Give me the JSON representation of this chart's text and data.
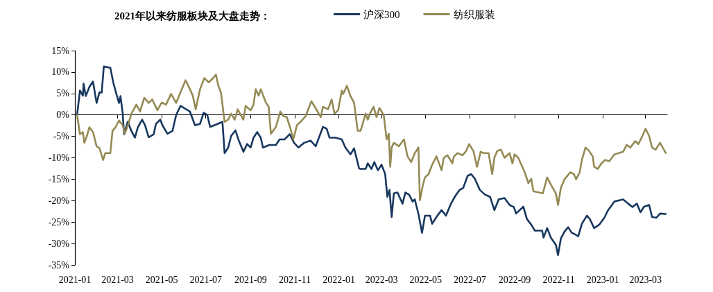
{
  "chart_data": {
    "type": "line",
    "title": "2021年以来纺服板块及大盘走势：",
    "xlim": [
      "2021-01-01",
      "2023-03-31"
    ],
    "xticks": [
      "2021-01",
      "2021-03",
      "2021-05",
      "2021-07",
      "2021-09",
      "2021-11",
      "2022-01",
      "2022-03",
      "2022-05",
      "2022-07",
      "2022-09",
      "2022-11",
      "2023-01",
      "2023-03"
    ],
    "ylim": [
      -35,
      15
    ],
    "yticks": [
      {
        "value": 15,
        "label": "15%"
      },
      {
        "value": 10,
        "label": "10%"
      },
      {
        "value": 5,
        "label": "5%"
      },
      {
        "value": 0,
        "label": "0%"
      },
      {
        "value": -5,
        "label": "-5%"
      },
      {
        "value": -10,
        "label": "-10%"
      },
      {
        "value": -15,
        "label": "-15%"
      },
      {
        "value": -20,
        "label": "-20%"
      },
      {
        "value": -25,
        "label": "-25%"
      },
      {
        "value": -30,
        "label": "-30%"
      },
      {
        "value": -35,
        "label": "-35%"
      }
    ],
    "legend": "top",
    "marker": "none",
    "line_style": "solid",
    "series": [
      {
        "name": "沪深300",
        "color": "#17375e",
        "x": [
          "2021-01-04",
          "2021-01-08",
          "2021-01-12",
          "2021-01-13",
          "2021-01-16",
          "2021-01-21",
          "2021-01-26",
          "2021-01-31",
          "2021-02-04",
          "2021-02-07",
          "2021-02-10",
          "2021-02-19",
          "2021-02-23",
          "2021-02-28",
          "2021-03-03",
          "2021-03-05",
          "2021-03-08",
          "2021-03-10",
          "2021-03-15",
          "2021-03-20",
          "2021-03-25",
          "2021-03-29",
          "2021-04-04",
          "2021-04-08",
          "2021-04-13",
          "2021-04-20",
          "2021-04-23",
          "2021-04-29",
          "2021-05-02",
          "2021-05-09",
          "2021-05-16",
          "2021-05-21",
          "2021-05-27",
          "2021-06-04",
          "2021-06-09",
          "2021-06-16",
          "2021-06-23",
          "2021-06-28",
          "2021-07-03",
          "2021-07-07",
          "2021-07-13",
          "2021-07-20",
          "2021-07-24",
          "2021-07-27",
          "2021-08-01",
          "2021-08-05",
          "2021-08-11",
          "2021-08-15",
          "2021-08-22",
          "2021-08-27",
          "2021-09-01",
          "2021-09-05",
          "2021-09-10",
          "2021-09-15",
          "2021-09-18",
          "2021-09-27",
          "2021-10-06",
          "2021-10-11",
          "2021-10-18",
          "2021-10-25",
          "2021-10-31",
          "2021-11-06",
          "2021-11-14",
          "2021-11-23",
          "2021-11-30",
          "2021-12-10",
          "2021-12-15",
          "2021-12-19",
          "2021-12-27",
          "2022-01-05",
          "2022-01-10",
          "2022-01-17",
          "2022-01-22",
          "2022-01-29",
          "2022-01-31",
          "2022-02-07",
          "2022-02-10",
          "2022-02-15",
          "2022-02-19",
          "2022-02-24",
          "2022-03-01",
          "2022-03-06",
          "2022-03-09",
          "2022-03-12",
          "2022-03-15",
          "2022-03-18",
          "2022-03-23",
          "2022-03-30",
          "2022-04-03",
          "2022-04-08",
          "2022-04-13",
          "2022-04-16",
          "2022-04-21",
          "2022-04-26",
          "2022-04-30",
          "2022-05-07",
          "2022-05-10",
          "2022-05-16",
          "2022-05-23",
          "2022-05-29",
          "2022-06-05",
          "2022-06-11",
          "2022-06-17",
          "2022-06-22",
          "2022-06-28",
          "2022-07-03",
          "2022-07-08",
          "2022-07-15",
          "2022-07-22",
          "2022-07-29",
          "2022-08-04",
          "2022-08-10",
          "2022-08-18",
          "2022-08-25",
          "2022-08-31",
          "2022-09-03",
          "2022-09-13",
          "2022-09-18",
          "2022-09-24",
          "2022-09-29",
          "2022-10-09",
          "2022-10-11",
          "2022-10-16",
          "2022-10-21",
          "2022-10-28",
          "2022-10-31",
          "2022-11-04",
          "2022-11-09",
          "2022-11-14",
          "2022-11-19",
          "2022-11-23",
          "2022-11-28",
          "2022-12-03",
          "2022-12-10",
          "2022-12-14",
          "2022-12-20",
          "2022-12-27",
          "2023-01-03",
          "2023-01-08",
          "2023-01-17",
          "2023-01-29",
          "2023-02-05",
          "2023-02-11",
          "2023-02-17",
          "2023-02-22",
          "2023-02-27",
          "2023-03-06",
          "2023-03-10",
          "2023-03-16",
          "2023-03-21",
          "2023-03-29"
        ],
        "values": [
          0,
          5.7,
          4.5,
          7.3,
          4.4,
          6.5,
          7.8,
          2.8,
          5.3,
          5.2,
          11.3,
          11,
          7.6,
          4.5,
          2.8,
          4.4,
          0.5,
          -4.5,
          -1.6,
          -3.7,
          -5.3,
          -2.9,
          -1.1,
          -2.4,
          -5.2,
          -4.5,
          -2.1,
          -1.1,
          -2.4,
          -4.4,
          -3.7,
          0,
          2.1,
          1.3,
          0.8,
          -2.4,
          -2.1,
          0.5,
          0,
          -2.8,
          -2.4,
          -1.9,
          -1.6,
          -8.9,
          -7.6,
          -4.9,
          -3.6,
          -5.7,
          -8.6,
          -6.8,
          -7.6,
          -5.3,
          -4,
          -5.3,
          -7.6,
          -7,
          -7,
          -5.7,
          -5.7,
          -4.5,
          -6.5,
          -7.6,
          -6.5,
          -6,
          -7.3,
          -2.8,
          -3.2,
          -5.3,
          -5.3,
          -5.7,
          -7.6,
          -9.2,
          -7.8,
          -12.5,
          -12.6,
          -12.6,
          -11.3,
          -12.6,
          -11,
          -12.9,
          -11.6,
          -13.8,
          -19.1,
          -17.5,
          -23.8,
          -18.3,
          -18.1,
          -20.7,
          -18.1,
          -18.6,
          -20.2,
          -19.7,
          -23.1,
          -27.5,
          -23.5,
          -23.5,
          -25.4,
          -23.8,
          -22.2,
          -23.5,
          -20.7,
          -18.9,
          -17.5,
          -17,
          -14.2,
          -13.8,
          -14.9,
          -17.5,
          -18.6,
          -19.1,
          -22.2,
          -19.7,
          -19.4,
          -21,
          -21.5,
          -23,
          -21.4,
          -24.3,
          -25.6,
          -27,
          -27,
          -28.6,
          -26.4,
          -28.6,
          -30.3,
          -32.7,
          -28.8,
          -27.2,
          -26.2,
          -27.5,
          -27.8,
          -28.3,
          -25.4,
          -23.5,
          -24.3,
          -26.4,
          -25.6,
          -24,
          -22.3,
          -20.2,
          -19.7,
          -20.7,
          -21.5,
          -20.7,
          -22.7,
          -21.4,
          -21,
          -23.8,
          -24,
          -23,
          -23.1
        ]
      },
      {
        "name": "纺织服装",
        "color": "#948a54",
        "x": [
          "2021-01-04",
          "2021-01-08",
          "2021-01-12",
          "2021-01-14",
          "2021-01-17",
          "2021-01-21",
          "2021-01-26",
          "2021-01-31",
          "2021-02-04",
          "2021-02-09",
          "2021-02-12",
          "2021-02-19",
          "2021-02-22",
          "2021-02-26",
          "2021-03-03",
          "2021-03-08",
          "2021-03-11",
          "2021-03-16",
          "2021-03-20",
          "2021-03-27",
          "2021-04-01",
          "2021-04-07",
          "2021-04-13",
          "2021-04-18",
          "2021-04-25",
          "2021-05-01",
          "2021-05-07",
          "2021-05-14",
          "2021-05-21",
          "2021-05-28",
          "2021-06-03",
          "2021-06-09",
          "2021-06-13",
          "2021-06-17",
          "2021-06-23",
          "2021-06-29",
          "2021-07-05",
          "2021-07-10",
          "2021-07-15",
          "2021-07-18",
          "2021-07-22",
          "2021-07-27",
          "2021-08-01",
          "2021-08-05",
          "2021-08-10",
          "2021-08-14",
          "2021-08-22",
          "2021-08-25",
          "2021-09-01",
          "2021-09-05",
          "2021-09-08",
          "2021-09-12",
          "2021-09-15",
          "2021-09-22",
          "2021-09-26",
          "2021-09-29",
          "2021-10-06",
          "2021-10-12",
          "2021-10-16",
          "2021-10-21",
          "2021-10-26",
          "2021-10-30",
          "2021-11-04",
          "2021-11-09",
          "2021-11-16",
          "2021-11-24",
          "2021-11-28",
          "2021-12-07",
          "2021-12-10",
          "2021-12-17",
          "2021-12-22",
          "2021-12-26",
          "2021-12-31",
          "2022-01-05",
          "2022-01-07",
          "2022-01-12",
          "2022-01-17",
          "2022-01-22",
          "2022-01-27",
          "2022-01-31",
          "2022-02-07",
          "2022-02-10",
          "2022-02-13",
          "2022-02-18",
          "2022-02-22",
          "2022-02-26",
          "2022-03-04",
          "2022-03-08",
          "2022-03-11",
          "2022-03-13",
          "2022-03-15",
          "2022-03-18",
          "2022-03-25",
          "2022-04-01",
          "2022-04-06",
          "2022-04-11",
          "2022-04-16",
          "2022-04-21",
          "2022-04-23",
          "2022-04-27",
          "2022-04-30",
          "2022-05-05",
          "2022-05-10",
          "2022-05-16",
          "2022-05-23",
          "2022-05-26",
          "2022-05-31",
          "2022-06-07",
          "2022-06-09",
          "2022-06-14",
          "2022-06-21",
          "2022-06-26",
          "2022-06-30",
          "2022-07-06",
          "2022-07-11",
          "2022-07-16",
          "2022-07-20",
          "2022-07-27",
          "2022-08-01",
          "2022-08-04",
          "2022-08-08",
          "2022-08-13",
          "2022-08-18",
          "2022-08-25",
          "2022-08-29",
          "2022-09-01",
          "2022-09-06",
          "2022-09-15",
          "2022-09-20",
          "2022-09-24",
          "2022-09-27",
          "2022-10-10",
          "2022-10-16",
          "2022-10-21",
          "2022-10-28",
          "2022-10-31",
          "2022-11-04",
          "2022-11-09",
          "2022-11-17",
          "2022-11-22",
          "2022-11-25",
          "2022-11-30",
          "2022-12-03",
          "2022-12-08",
          "2022-12-13",
          "2022-12-18",
          "2022-12-20",
          "2022-12-25",
          "2022-12-30",
          "2023-01-04",
          "2023-01-10",
          "2023-01-17",
          "2023-01-23",
          "2023-01-29",
          "2023-02-03",
          "2023-02-08",
          "2023-02-15",
          "2023-02-19",
          "2023-02-24",
          "2023-03-01",
          "2023-03-06",
          "2023-03-10",
          "2023-03-15",
          "2023-03-21",
          "2023-03-29"
        ],
        "values": [
          0,
          -4.5,
          -4,
          -6.5,
          -5.2,
          -2.9,
          -4,
          -7.3,
          -7.8,
          -10.5,
          -8.9,
          -8.9,
          -3.7,
          -2.9,
          -1.3,
          -2.4,
          -4.4,
          -2.1,
          0.3,
          2.4,
          0.8,
          4,
          2.8,
          3.6,
          1.1,
          2.9,
          2.4,
          4.9,
          2.8,
          5.7,
          8.1,
          6,
          4.5,
          1.3,
          6,
          8.6,
          7.6,
          8.4,
          9.4,
          7,
          5.2,
          -1.6,
          -1.1,
          0.3,
          -1.1,
          1.3,
          -1.1,
          2.1,
          1.1,
          2.4,
          6,
          4.5,
          6,
          2.9,
          1.9,
          -4.4,
          -2.8,
          0.8,
          -0.3,
          -0.5,
          -3.2,
          -5.7,
          -2.4,
          -1.6,
          -0.3,
          3.2,
          2.1,
          -0.5,
          1.9,
          1.3,
          3.6,
          0.3,
          1.1,
          5.7,
          4.9,
          6.8,
          4.4,
          2.9,
          -3.7,
          -3.7,
          0.3,
          -1.1,
          0.3,
          1.9,
          -0.5,
          1.6,
          0,
          -5.7,
          -4.4,
          -12.1,
          -7.6,
          -6.5,
          -7.3,
          -5.7,
          -9.7,
          -11,
          -8.9,
          -7.6,
          -19.9,
          -16.5,
          -14.6,
          -13.8,
          -11.6,
          -9.7,
          -12.9,
          -10,
          -9.4,
          -11.3,
          -9.7,
          -8.9,
          -9.4,
          -8.4,
          -6.8,
          -8.4,
          -12.1,
          -8.6,
          -8.9,
          -8.9,
          -13.8,
          -10,
          -8.4,
          -8.1,
          -10,
          -8.9,
          -11.3,
          -9.2,
          -10,
          -13.4,
          -15.9,
          -14.9,
          -17.8,
          -18.3,
          -14.6,
          -16.2,
          -18.3,
          -21,
          -17,
          -15,
          -13.4,
          -13.8,
          -15,
          -13.4,
          -10.5,
          -7.6,
          -8.4,
          -9.7,
          -12.1,
          -12.6,
          -11.3,
          -10.5,
          -10.8,
          -9.2,
          -8.9,
          -8.6,
          -7,
          -7.6,
          -6.1,
          -6.8,
          -5.2,
          -3.2,
          -4.9,
          -7.6,
          -8.1,
          -6.5,
          -8.9
        ]
      }
    ]
  }
}
